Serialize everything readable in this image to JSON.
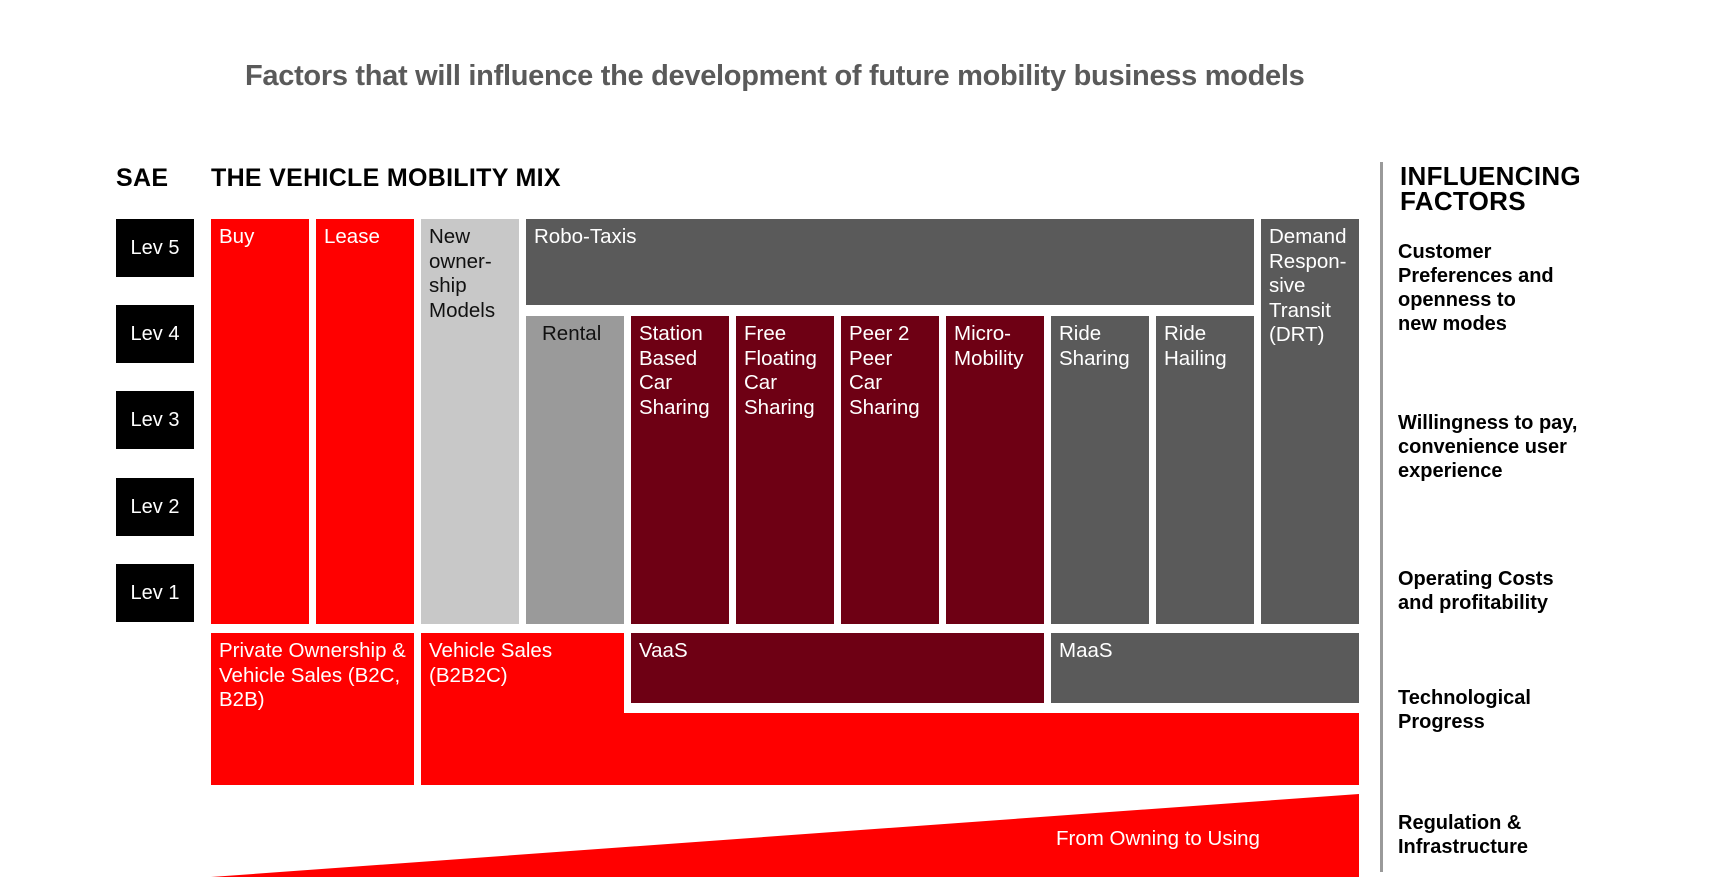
{
  "title": "Factors that will influence the development of future mobility business models",
  "headers": {
    "sae": "SAE",
    "mix": "THE VEHICLE MOBILITY MIX",
    "influencing": "INFLUENCING FACTORS"
  },
  "levels": [
    "Lev 5",
    "Lev 4",
    "Lev 3",
    "Lev 2",
    "Lev 1"
  ],
  "models": {
    "buy": "Buy",
    "lease": "Lease",
    "new_ownership": "New owner-ship Models",
    "robo_taxis": "Robo-Taxis",
    "drt": "Demand Respon-sive Transit (DRT)",
    "rental": "Rental",
    "station_based": "Station Based Car Sharing",
    "free_floating": "Free Floating Car Sharing",
    "peer2peer": "Peer 2 Peer Car Sharing",
    "micro_mobility": "Micro-Mobility",
    "ride_sharing": "Ride Sharing",
    "ride_hailing": "Ride Hailing"
  },
  "categories": {
    "private": "Private Ownership & Vehicle Sales (B2C, B2B)",
    "vehicle_sales": "Vehicle Sales (B2B2C)",
    "vaas": "VaaS",
    "maas": "MaaS"
  },
  "wedge_label": "From Owning to Using",
  "factors": [
    "Customer Preferences and openness to new modes",
    "Willingness to pay, convenience user experience",
    "Operating Costs and profitability",
    "Technological Progress",
    "Regulation & Infrastructure"
  ],
  "colors": {
    "red": "#ff0000",
    "light_grey": "#c8c8c8",
    "mid_grey": "#9a9a9a",
    "dark_grey": "#5a5a5a",
    "maroon": "#6e0014",
    "title_grey": "#5a5a5a"
  }
}
